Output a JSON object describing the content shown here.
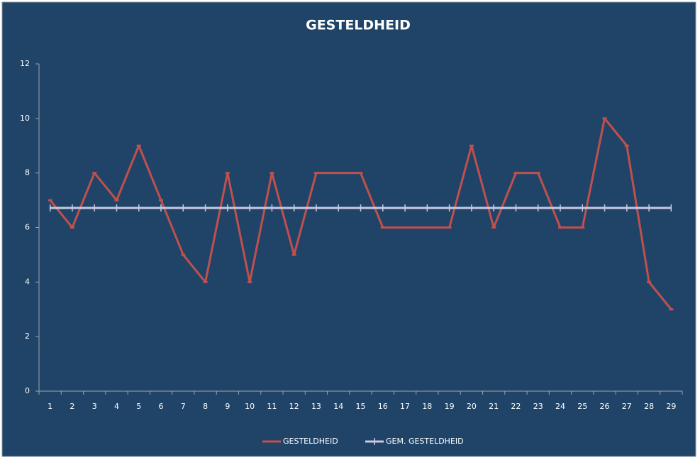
{
  "chart_data": {
    "type": "line",
    "title": "GESTELDHEID",
    "categories": [
      "1",
      "2",
      "3",
      "4",
      "5",
      "6",
      "7",
      "8",
      "9",
      "10",
      "11",
      "12",
      "13",
      "14",
      "15",
      "16",
      "17",
      "18",
      "19",
      "20",
      "21",
      "22",
      "23",
      "24",
      "25",
      "26",
      "27",
      "28",
      "29"
    ],
    "series": [
      {
        "name": "GESTELDHEID",
        "color": "#c0504d",
        "values": [
          7,
          6,
          8,
          7,
          9,
          7,
          5,
          4,
          8,
          4,
          8,
          5,
          8,
          8,
          8,
          6,
          6,
          6,
          6,
          9,
          6,
          8,
          8,
          6,
          6,
          10,
          9,
          4,
          3
        ]
      },
      {
        "name": "GEM. GESTELDHEID",
        "color": "#c9c9e3",
        "values": [
          6.72,
          6.72,
          6.72,
          6.72,
          6.72,
          6.72,
          6.72,
          6.72,
          6.72,
          6.72,
          6.72,
          6.72,
          6.72,
          6.72,
          6.72,
          6.72,
          6.72,
          6.72,
          6.72,
          6.72,
          6.72,
          6.72,
          6.72,
          6.72,
          6.72,
          6.72,
          6.72,
          6.72,
          6.72
        ]
      }
    ],
    "ylim": [
      0,
      12
    ],
    "yticks": [
      0,
      2,
      4,
      6,
      8,
      10,
      12
    ],
    "grid": false,
    "legend": "bottom"
  }
}
